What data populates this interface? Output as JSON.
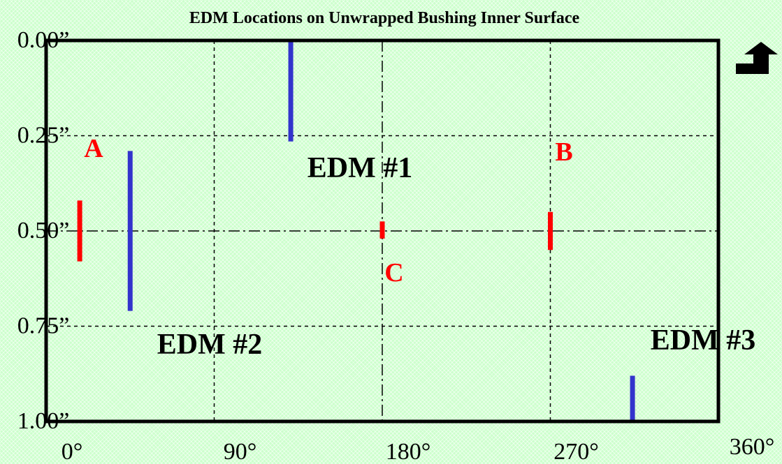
{
  "title": "EDM Locations on Unwrapped Bushing Inner Surface",
  "y_axis": {
    "ticks": [
      {
        "value": 0.0,
        "label": "0.00”"
      },
      {
        "value": 0.25,
        "label": "0.25”"
      },
      {
        "value": 0.5,
        "label": "0.50”"
      },
      {
        "value": 0.75,
        "label": "0.75”"
      },
      {
        "value": 1.0,
        "label": "1.00”"
      }
    ]
  },
  "x_axis": {
    "ticks": [
      {
        "value": 0,
        "label": "0°"
      },
      {
        "value": 90,
        "label": "90°"
      },
      {
        "value": 180,
        "label": "180°"
      },
      {
        "value": 270,
        "label": "270°"
      },
      {
        "value": 360,
        "label": "360°"
      }
    ]
  },
  "edm_notches": [
    {
      "label": "EDM #1",
      "angle": 131,
      "depth_start": 0.0,
      "depth_end": 0.265
    },
    {
      "label": "EDM #2",
      "angle": 45,
      "depth_start": 0.29,
      "depth_end": 0.71
    },
    {
      "label": "EDM #3",
      "angle": 314,
      "depth_start": 0.88,
      "depth_end": 1.0
    }
  ],
  "points": [
    {
      "label": "A",
      "angle": 18,
      "depth_start": 0.42,
      "depth_end": 0.58
    },
    {
      "label": "B",
      "angle": 270,
      "depth_start": 0.45,
      "depth_end": 0.55
    },
    {
      "label": "C",
      "angle": 180,
      "depth_start": 0.475,
      "depth_end": 0.52
    }
  ],
  "colors": {
    "edm": "#3333cc",
    "point": "#ff0000",
    "frame": "#000000",
    "background": "#ccffcc"
  },
  "direction_icon": "corner-arrow-up-icon"
}
